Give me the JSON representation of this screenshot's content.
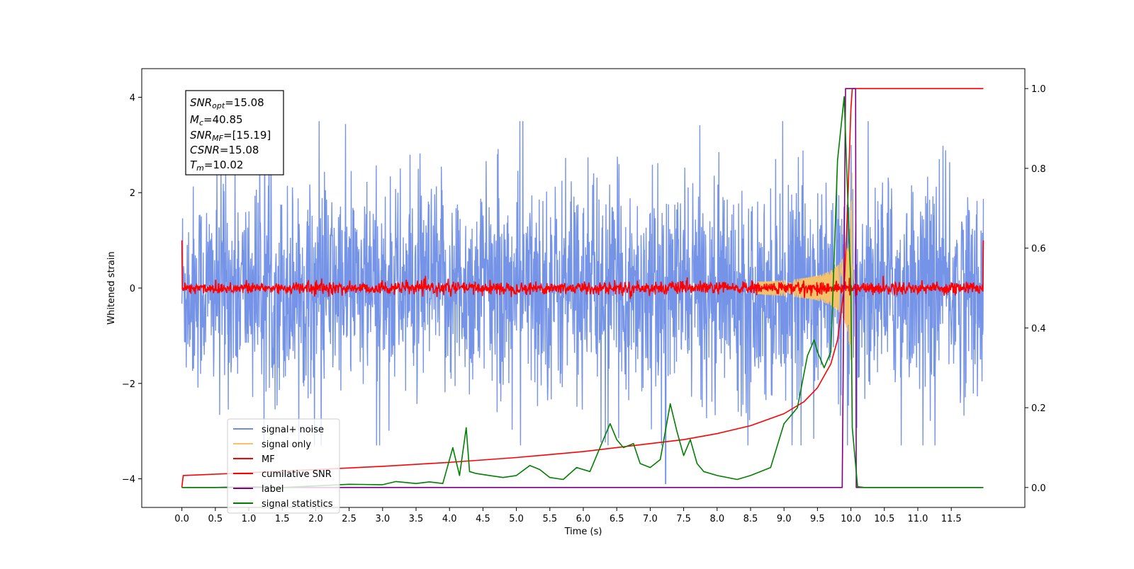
{
  "chart_data": {
    "type": "line",
    "xlabel": "Time (s)",
    "ylabel_left": "Whitened strain",
    "ylabel_right": "",
    "xlim": [
      -0.6,
      12.6
    ],
    "ylim_left": [
      -4.6,
      4.6
    ],
    "ylim_right": [
      -0.05,
      1.05
    ],
    "x_ticks": [
      0.0,
      0.5,
      1.0,
      1.5,
      2.0,
      2.5,
      3.0,
      3.5,
      4.0,
      4.5,
      5.0,
      5.5,
      6.0,
      6.5,
      7.0,
      7.5,
      8.0,
      8.5,
      9.0,
      9.5,
      10.0,
      10.5,
      11.0,
      11.5
    ],
    "x_tick_labels": [
      "0.0",
      "0.5",
      "1.0",
      "1.5",
      "2.0",
      "2.5",
      "3.0",
      "3.5",
      "4.0",
      "4.5",
      "5.0",
      "5.5",
      "6.0",
      "6.5",
      "7.0",
      "7.5",
      "8.0",
      "8.5",
      "9.0",
      "9.5",
      "10.0",
      "10.5",
      "11.0",
      "11.5"
    ],
    "y_left_ticks": [
      -4,
      -2,
      0,
      2,
      4
    ],
    "y_left_tick_labels": [
      "−4",
      "−2",
      "0",
      "2",
      "4"
    ],
    "y_right_ticks": [
      0.0,
      0.2,
      0.4,
      0.6,
      0.8,
      1.0
    ],
    "y_right_tick_labels": [
      "0.0",
      "0.2",
      "0.4",
      "0.6",
      "0.8",
      "1.0"
    ],
    "grid": false,
    "legend_position": "bottom-left",
    "info_box": {
      "snr_opt_main": "SNR",
      "snr_opt_sub": "opt",
      "snr_opt_value": "=15.08",
      "mc_main": "M",
      "mc_sub": "c",
      "mc_value": "=40.85",
      "snr_mf_main": "SNR",
      "snr_mf_sub": "MF",
      "snr_mf_value": "=[15.19]",
      "csnr_main": "CSNR",
      "csnr_value": "=15.08",
      "tm_main": "T",
      "tm_sub": "m",
      "tm_value": "=10.02"
    },
    "series": [
      {
        "name": "signal+ noise",
        "axis": "left",
        "color": "#6f8ee6",
        "kind": "noise",
        "x_range": [
          0.0,
          11.98
        ],
        "amplitude_envelope": [
          -3.3,
          3.5
        ],
        "spike_at": [
          7.23,
          9.95
        ],
        "spike_values": [
          -4.1,
          -3.3
        ]
      },
      {
        "name": "signal only",
        "axis": "left",
        "color": "#f5c26b",
        "kind": "chirp",
        "merger_time": 10.02,
        "peak_amplitude": 2.7
      },
      {
        "name": "MF",
        "axis": "left",
        "color": "#ff0000",
        "kind": "small-noise",
        "x_range": [
          0.0,
          11.98
        ],
        "amplitude": 0.15,
        "edge_value": 1.0
      },
      {
        "name": "cumilative SNR",
        "axis": "right",
        "color": "#ff0000",
        "x": [
          0.0,
          0.02,
          1.0,
          2.0,
          3.0,
          4.0,
          5.0,
          6.0,
          7.0,
          7.5,
          8.0,
          8.5,
          9.0,
          9.3,
          9.5,
          9.7,
          9.8,
          9.9,
          9.95,
          10.0,
          10.02,
          11.98
        ],
        "y": [
          0.0,
          0.03,
          0.037,
          0.045,
          0.053,
          0.063,
          0.075,
          0.09,
          0.11,
          0.12,
          0.135,
          0.155,
          0.185,
          0.215,
          0.25,
          0.31,
          0.37,
          0.5,
          0.7,
          0.95,
          1.0,
          1.0
        ]
      },
      {
        "name": "label",
        "axis": "right",
        "color": "#800080",
        "x": [
          0.0,
          9.87,
          9.92,
          10.07,
          10.08,
          11.98
        ],
        "y": [
          0.0,
          0.0,
          1.0,
          1.0,
          0.0,
          0.0
        ]
      },
      {
        "name": "signal statistics",
        "axis": "right",
        "color": "#008000",
        "x": [
          0.0,
          0.5,
          1.0,
          1.5,
          2.0,
          2.5,
          3.0,
          3.2,
          3.5,
          3.7,
          3.9,
          4.05,
          4.15,
          4.25,
          4.3,
          4.4,
          4.6,
          4.8,
          5.0,
          5.2,
          5.35,
          5.5,
          5.7,
          5.9,
          6.1,
          6.3,
          6.4,
          6.5,
          6.6,
          6.75,
          6.85,
          7.0,
          7.15,
          7.3,
          7.4,
          7.5,
          7.6,
          7.7,
          7.8,
          8.0,
          8.3,
          8.5,
          8.8,
          9.0,
          9.2,
          9.35,
          9.45,
          9.5,
          9.6,
          9.7,
          9.8,
          9.9,
          10.0,
          10.02,
          10.1,
          10.2,
          11.98
        ],
        "y": [
          0.0,
          0.0,
          0.002,
          0.0,
          0.004,
          0.008,
          0.007,
          0.015,
          0.01,
          0.014,
          0.01,
          0.1,
          0.03,
          0.15,
          0.04,
          0.035,
          0.03,
          0.025,
          0.03,
          0.055,
          0.045,
          0.025,
          0.02,
          0.05,
          0.04,
          0.12,
          0.16,
          0.12,
          0.1,
          0.11,
          0.06,
          0.05,
          0.07,
          0.21,
          0.14,
          0.08,
          0.12,
          0.06,
          0.04,
          0.03,
          0.02,
          0.03,
          0.05,
          0.16,
          0.2,
          0.33,
          0.37,
          0.34,
          0.3,
          0.34,
          0.82,
          0.98,
          0.5,
          0.15,
          0.002,
          0.0,
          0.0
        ]
      }
    ]
  }
}
